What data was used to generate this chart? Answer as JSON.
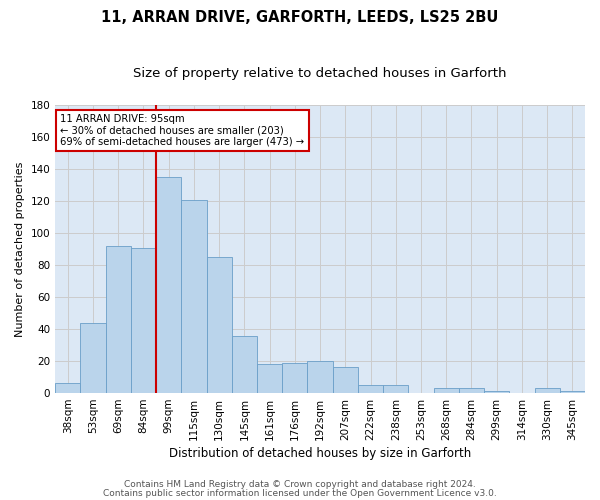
{
  "title1": "11, ARRAN DRIVE, GARFORTH, LEEDS, LS25 2BU",
  "title2": "Size of property relative to detached houses in Garforth",
  "xlabel": "Distribution of detached houses by size in Garforth",
  "ylabel": "Number of detached properties",
  "categories": [
    "38sqm",
    "53sqm",
    "69sqm",
    "84sqm",
    "99sqm",
    "115sqm",
    "130sqm",
    "145sqm",
    "161sqm",
    "176sqm",
    "192sqm",
    "207sqm",
    "222sqm",
    "238sqm",
    "253sqm",
    "268sqm",
    "284sqm",
    "299sqm",
    "314sqm",
    "330sqm",
    "345sqm"
  ],
  "values": [
    6,
    44,
    92,
    91,
    135,
    121,
    85,
    36,
    18,
    19,
    20,
    16,
    5,
    5,
    0,
    3,
    3,
    1,
    0,
    3,
    1
  ],
  "bar_color": "#bad4eb",
  "bar_edge_color": "#6a9ec8",
  "property_line_x": 3.5,
  "annotation_line1": "11 ARRAN DRIVE: 95sqm",
  "annotation_line2": "← 30% of detached houses are smaller (203)",
  "annotation_line3": "69% of semi-detached houses are larger (473) →",
  "annotation_box_color": "white",
  "annotation_box_edge_color": "#cc0000",
  "vline_color": "#cc0000",
  "ylim": [
    0,
    180
  ],
  "yticks": [
    0,
    20,
    40,
    60,
    80,
    100,
    120,
    140,
    160,
    180
  ],
  "grid_color": "#cccccc",
  "bg_color": "#dce8f5",
  "footer1": "Contains HM Land Registry data © Crown copyright and database right 2024.",
  "footer2": "Contains public sector information licensed under the Open Government Licence v3.0.",
  "title1_fontsize": 10.5,
  "title2_fontsize": 9.5,
  "xlabel_fontsize": 8.5,
  "ylabel_fontsize": 8,
  "tick_fontsize": 7.5,
  "footer_fontsize": 6.5
}
